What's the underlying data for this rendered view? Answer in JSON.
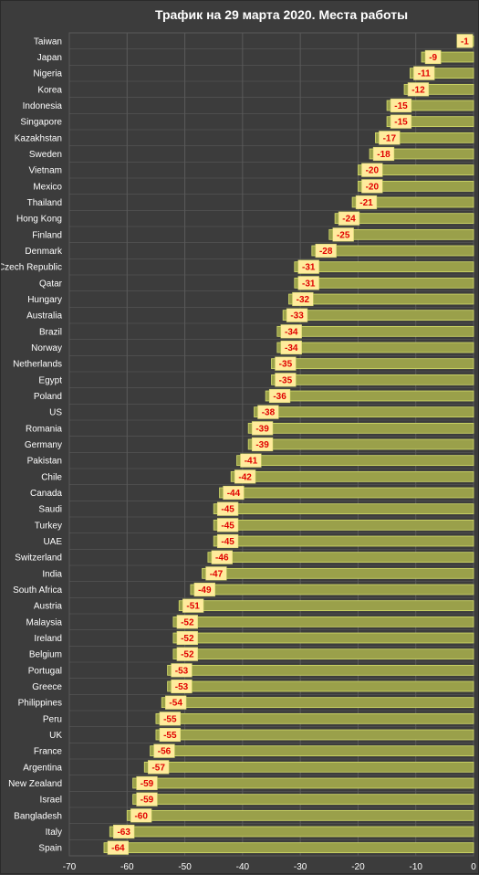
{
  "chart_data": {
    "type": "bar",
    "orientation": "horizontal",
    "title": "Трафик на 29 марта 2020. Места работы",
    "xlabel": "",
    "ylabel": "",
    "xlim": [
      -70,
      0
    ],
    "xticks": [
      -70,
      -60,
      -50,
      -40,
      -30,
      -20,
      -10,
      0
    ],
    "grid": true,
    "data_labels": true,
    "colors": {
      "background": "#3c3c3c",
      "bar_fill": "#9aa04a",
      "bar_stroke": "#d4dc6a",
      "label_bg": "#ffeb9c",
      "label_text": "#e00000",
      "grid": "#5a5a5a",
      "text": "#ffffff"
    },
    "categories": [
      "Taiwan",
      "Japan",
      "Nigeria",
      "Korea",
      "Indonesia",
      "Singapore",
      "Kazakhstan",
      "Sweden",
      "Vietnam",
      "Mexico",
      "Thailand",
      "Hong Kong",
      "Finland",
      "Denmark",
      "Czech Republic",
      "Qatar",
      "Hungary",
      "Australia",
      "Brazil",
      "Norway",
      "Netherlands",
      "Egypt",
      "Poland",
      "US",
      "Romania",
      "Germany",
      "Pakistan",
      "Chile",
      "Canada",
      "Saudi",
      "Turkey",
      "UAE",
      "Switzerland",
      "India",
      "South Africa",
      "Austria",
      "Malaysia",
      "Ireland",
      "Belgium",
      "Portugal",
      "Greece",
      "Philippines",
      "Peru",
      "UK",
      "France",
      "Argentina",
      "New Zealand",
      "Israel",
      "Bangladesh",
      "Italy",
      "Spain"
    ],
    "values": [
      -1,
      -9,
      -11,
      -12,
      -15,
      -15,
      -17,
      -18,
      -20,
      -20,
      -21,
      -24,
      -25,
      -28,
      -31,
      -31,
      -32,
      -33,
      -34,
      -34,
      -35,
      -35,
      -36,
      -38,
      -39,
      -39,
      -41,
      -42,
      -44,
      -45,
      -45,
      -45,
      -46,
      -47,
      -49,
      -51,
      -52,
      -52,
      -52,
      -53,
      -53,
      -54,
      -55,
      -55,
      -56,
      -57,
      -59,
      -59,
      -60,
      -63,
      -64
    ]
  }
}
